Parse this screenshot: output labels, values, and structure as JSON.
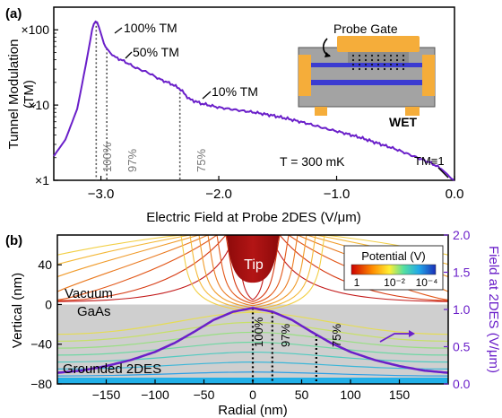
{
  "chart_data": [
    {
      "panel": "(a)",
      "type": "line",
      "xlabel": "Electric Field at Probe 2DES (V/μm)",
      "ylabel": "Tunnel Modulation (TM)",
      "xlim": [
        -3.4,
        0.0
      ],
      "ylim": [
        1,
        200
      ],
      "yscale": "log",
      "xticks": [
        "−3.0",
        "−2.0",
        "−1.0",
        "0.0"
      ],
      "yticks": [
        "×1",
        "×10",
        "×100"
      ],
      "series": [
        {
          "color": "#6a1fc9",
          "x": [
            -3.4,
            -3.3,
            -3.2,
            -3.12,
            -3.07,
            -3.05,
            -3.03,
            -3.0,
            -2.97,
            -2.9,
            -2.8,
            -2.7,
            -2.6,
            -2.5,
            -2.4,
            -2.33,
            -2.25,
            -2.15,
            -2.0,
            -1.85,
            -1.7,
            -1.55,
            -1.4,
            -1.25,
            -1.1,
            -0.95,
            -0.8,
            -0.65,
            -0.5,
            -0.35,
            -0.2,
            -0.12,
            -0.06,
            -0.03,
            0.0
          ],
          "values": [
            2.1,
            3.5,
            9.0,
            40,
            110,
            130,
            125,
            90,
            62,
            45,
            38,
            31,
            27,
            22,
            19,
            16.5,
            12,
            10.5,
            9.3,
            8.6,
            8.0,
            7.3,
            6.5,
            5.7,
            4.9,
            4.3,
            3.7,
            3.1,
            2.6,
            2.1,
            1.7,
            1.45,
            1.2,
            1.06,
            1.0
          ]
        }
      ],
      "annotations": [
        "100% TM",
        "50% TM",
        "10% TM",
        "TM≡1",
        "T = 300 mK"
      ],
      "marker_lines": [
        {
          "x": -3.04,
          "label": "100%"
        },
        {
          "x": -2.95,
          "label": "97%"
        },
        {
          "x": -2.33,
          "label": "75%"
        }
      ],
      "inset": {
        "title": "Probe Gate",
        "caption": "WET"
      }
    },
    {
      "panel": "(b)",
      "type": "line",
      "xlabel": "Radial (nm)",
      "ylabel": "Vertical (nm)",
      "y2label": "Field at 2DES (V/μm)",
      "xlim": [
        -200,
        200
      ],
      "ylim": [
        -80,
        70
      ],
      "y2lim": [
        0,
        2.0
      ],
      "xticks": [
        "−150",
        "−100",
        "−50",
        "0",
        "50",
        "100",
        "150"
      ],
      "yticks": [
        "40",
        "0",
        "−40",
        "−80"
      ],
      "y2ticks": [
        "0.0",
        "0.5",
        "1.0",
        "1.5",
        "2.0"
      ],
      "series": [
        {
          "axis": "right",
          "color": "#6a1fc9",
          "x": [
            -200,
            -175,
            -150,
            -125,
            -100,
            -80,
            -60,
            -40,
            -20,
            0,
            20,
            40,
            60,
            80,
            100,
            125,
            150,
            175,
            200
          ],
          "values": [
            0.15,
            0.18,
            0.24,
            0.32,
            0.43,
            0.55,
            0.7,
            0.86,
            0.97,
            1.02,
            0.97,
            0.86,
            0.7,
            0.55,
            0.43,
            0.32,
            0.24,
            0.18,
            0.15
          ]
        }
      ],
      "marker_lines": [
        {
          "x": 0,
          "label": "100%"
        },
        {
          "x": 20,
          "label": "97%"
        },
        {
          "x": 65,
          "label": "75%"
        }
      ],
      "region_labels": [
        "Tip",
        "Vacuum",
        "GaAs",
        "Grounded 2DES"
      ],
      "colorbar": {
        "title": "Potential (V)",
        "ticks": [
          "1",
          "10⁻²",
          "10⁻⁴"
        ]
      }
    }
  ],
  "text": {
    "a_label": "(a)",
    "b_label": "(b)",
    "ann_100": "100% TM",
    "ann_50": "50% TM",
    "ann_10": "10% TM",
    "ann_tm1": "TM≡1",
    "ann_temp": "T = 300 mK",
    "pct_100": "100%",
    "pct_97": "97%",
    "pct_75": "75%",
    "inset_title": "Probe Gate",
    "inset_caption": "WET",
    "a_xlabel": "Electric Field at Probe 2DES (V/μm)",
    "a_ylabel_1": "Tunnel Modulation",
    "a_ylabel_2": "(TM)",
    "b_xlabel": "Radial (nm)",
    "b_ylabel": "Vertical (nm)",
    "b_y2label": "Field at 2DES (V/μm)",
    "tip": "Tip",
    "vacuum": "Vacuum",
    "gaas": "GaAs",
    "grounded": "Grounded 2DES",
    "cb_title": "Potential (V)",
    "cb_t1": "1",
    "cb_t2": "10⁻²",
    "cb_t3": "10⁻⁴"
  },
  "colors": {
    "curve": "#6a1fc9",
    "gate": "#f5ad3a",
    "substrate": "#a3a3a3",
    "well": "#3b3bd1",
    "tip": "#a80f0f",
    "gaas_fill": "#cfcfcf"
  }
}
